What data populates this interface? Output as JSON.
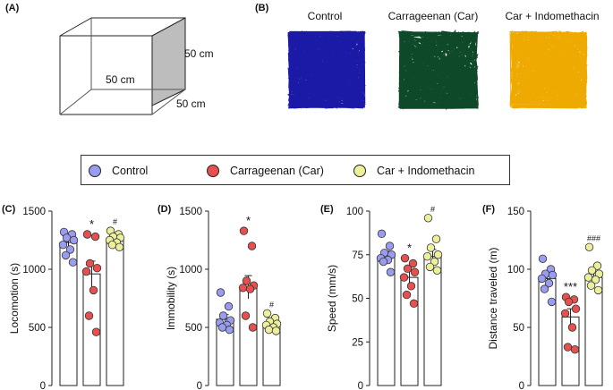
{
  "panels": {
    "a": "(A)",
    "b": "(B)",
    "c": "(C)",
    "d": "(D)",
    "e": "(E)",
    "f": "(F)"
  },
  "box": {
    "height_label": "50 cm",
    "width_label": "50 cm",
    "depth_label": "50 cm"
  },
  "tracks": [
    {
      "label": "Control",
      "color": "#1a1aa6"
    },
    {
      "label": "Carrageenan (Car)",
      "color": "#0e4a2a"
    },
    {
      "label": "Car + Indomethacin",
      "color": "#eeaa00"
    }
  ],
  "legend": [
    {
      "label": "Control",
      "color": "#9a9cf0"
    },
    {
      "label": "Carrageenan (Car)",
      "color": "#e85050"
    },
    {
      "label": "Car + Indomethacin",
      "color": "#ecf09a"
    }
  ],
  "group_colors": [
    "#9a9cf0",
    "#e85050",
    "#ecf09a"
  ],
  "chart_data": [
    {
      "type": "bar",
      "panel": "(C)",
      "ylabel": "Locomotion (s)",
      "ylim": [
        0,
        1500
      ],
      "yticks": [
        0,
        500,
        1000,
        1500
      ],
      "categories": [
        "Control",
        "Carrageenan (Car)",
        "Car + Indomethacin"
      ],
      "values": [
        1230,
        960,
        1265
      ],
      "sem": [
        40,
        110,
        25
      ],
      "points": [
        [
          1320,
          1300,
          1270,
          1250,
          1210,
          1170,
          1120,
          1060
        ],
        [
          1300,
          1280,
          1050,
          1010,
          980,
          820,
          600,
          460
        ],
        [
          1330,
          1300,
          1280,
          1270,
          1250,
          1230,
          1210,
          1190
        ]
      ],
      "significance": [
        "",
        "*",
        "#"
      ]
    },
    {
      "type": "bar",
      "panel": "(D)",
      "ylabel": "Immobility (s)",
      "ylim": [
        0,
        1500
      ],
      "yticks": [
        0,
        500,
        1000,
        1500
      ],
      "categories": [
        "Control",
        "Carrageenan (Car)",
        "Car + Indomethacin"
      ],
      "values": [
        570,
        845,
        535
      ],
      "sem": [
        40,
        100,
        25
      ],
      "points": [
        [
          800,
          680,
          600,
          560,
          540,
          520,
          500,
          480
        ],
        [
          1330,
          1200,
          900,
          860,
          840,
          830,
          600,
          500
        ],
        [
          620,
          580,
          550,
          530,
          520,
          500,
          480,
          470
        ]
      ],
      "significance": [
        "",
        "*",
        "#"
      ]
    },
    {
      "type": "bar",
      "panel": "(E)",
      "ylabel": "Speed (mm/s)",
      "ylim": [
        0,
        100
      ],
      "yticks": [
        0,
        25,
        50,
        75,
        100
      ],
      "categories": [
        "Control",
        "Carrageenan (Car)",
        "Car + Indomethacin"
      ],
      "values": [
        74,
        62,
        74
      ],
      "sem": [
        3,
        4,
        4
      ],
      "points": [
        [
          87,
          80,
          76,
          75,
          73,
          72,
          71,
          65
        ],
        [
          73,
          70,
          67,
          65,
          62,
          57,
          52,
          47
        ],
        [
          96,
          84,
          79,
          75,
          74,
          71,
          68,
          66
        ]
      ],
      "significance": [
        "",
        "*",
        "#"
      ]
    },
    {
      "type": "bar",
      "panel": "(F)",
      "ylabel": "Distance traveled (m)",
      "ylim": [
        0,
        150
      ],
      "yticks": [
        0,
        50,
        100,
        150
      ],
      "categories": [
        "Control",
        "Carrageenan (Car)",
        "Car + Indomethacin"
      ],
      "values": [
        92,
        59,
        93
      ],
      "sem": [
        5,
        7,
        5
      ],
      "points": [
        [
          109,
          100,
          96,
          95,
          92,
          88,
          83,
          72
        ],
        [
          76,
          74,
          72,
          66,
          62,
          50,
          33,
          31
        ],
        [
          119,
          103,
          99,
          96,
          93,
          91,
          86,
          82
        ]
      ],
      "significance": [
        "",
        "***",
        "###"
      ]
    }
  ]
}
